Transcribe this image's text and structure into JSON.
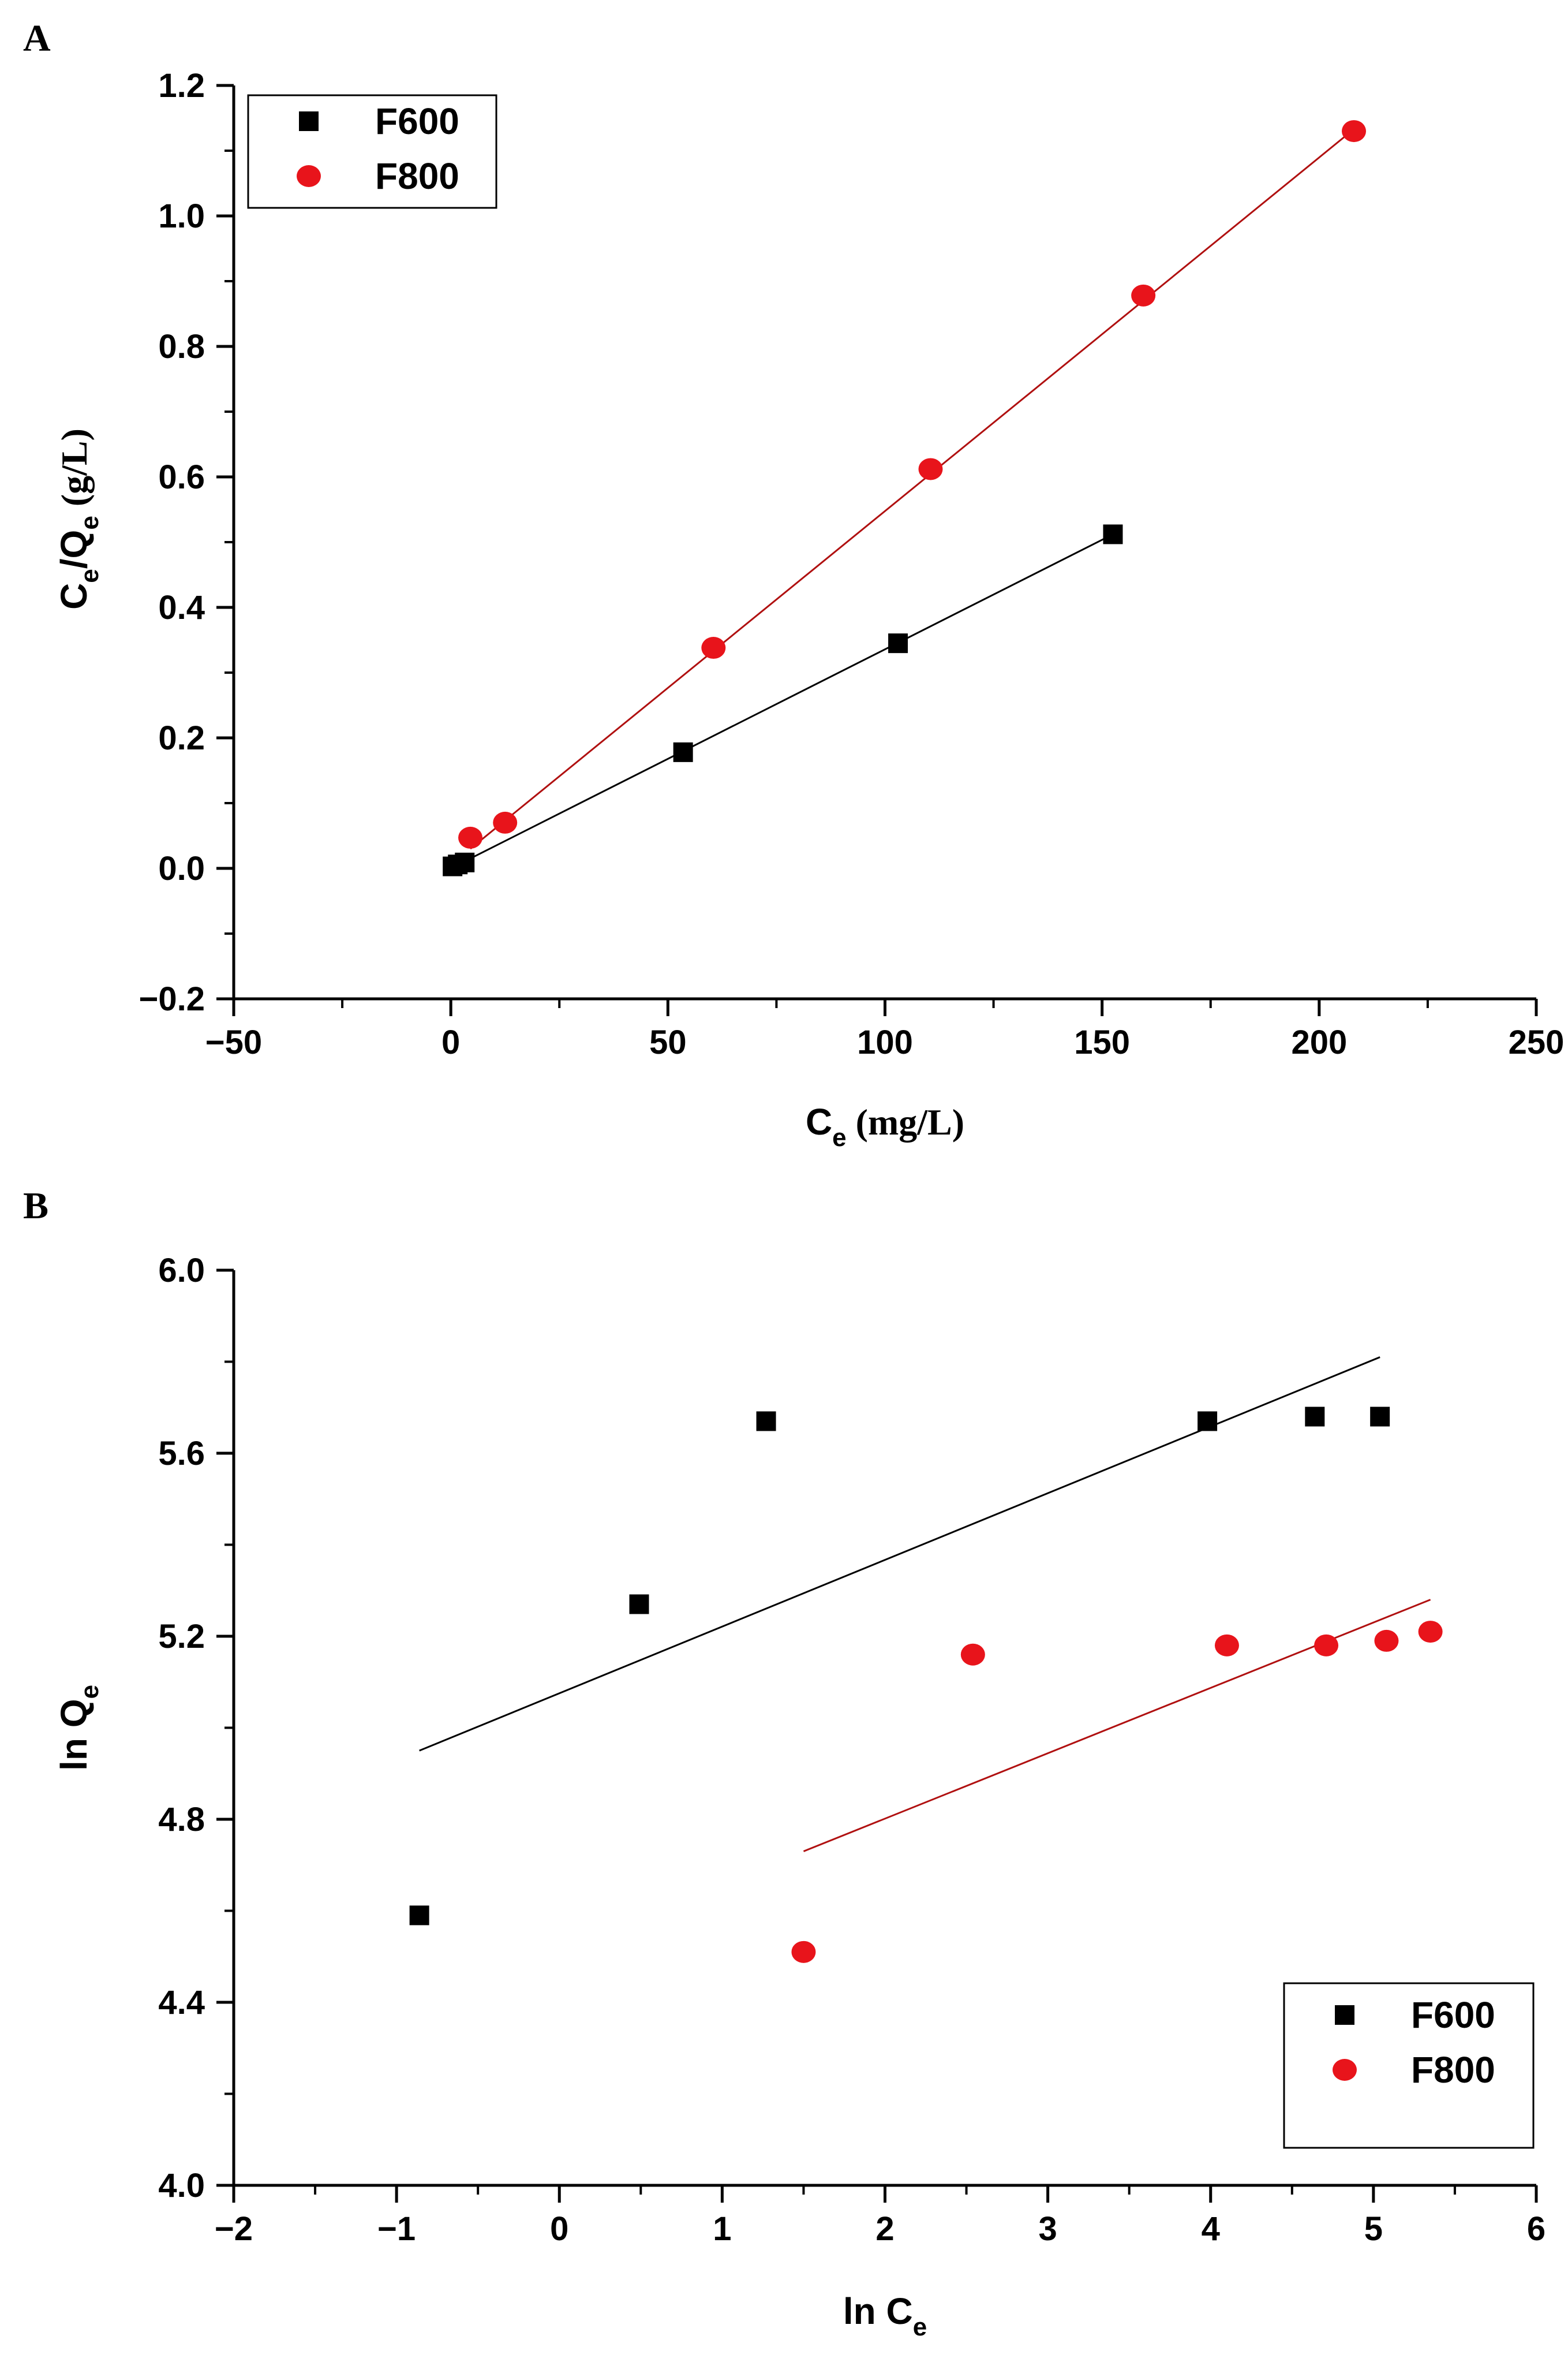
{
  "chart_data": [
    {
      "panel_label": "A",
      "type": "scatter",
      "title": "",
      "xlabel": {
        "main": "C",
        "sub": "e",
        "unit": "(mg/L)"
      },
      "ylabel": {
        "main1": "C",
        "sub1": "e",
        "main2": "/Q",
        "sub2": "e",
        "unit": "(g/L)"
      },
      "xlim": [
        -50,
        250
      ],
      "ylim": [
        -0.2,
        1.2
      ],
      "xticks": [
        -50,
        0,
        50,
        100,
        150,
        200,
        250
      ],
      "yticks": [
        -0.2,
        0.0,
        0.2,
        0.4,
        0.6,
        0.8,
        1.0,
        1.2
      ],
      "xtick_labels": [
        "−50",
        "0",
        "50",
        "100",
        "150",
        "200",
        "250"
      ],
      "ytick_labels": [
        "−0.2",
        "0.0",
        "0.2",
        "0.4",
        "0.6",
        "0.8",
        "1.0",
        "1.2"
      ],
      "legend_position": "top-left",
      "series": [
        {
          "name": "F600",
          "marker": "square",
          "color": "#000000",
          "x": [
            0.4,
            1.6,
            3.2,
            53.5,
            103.0,
            152.5
          ],
          "y": [
            0.003,
            0.006,
            0.009,
            0.178,
            0.345,
            0.512
          ],
          "fit_line": {
            "x": [
              0.0,
              152.5
            ],
            "y": [
              0.0,
              0.512
            ]
          }
        },
        {
          "name": "F800",
          "marker": "circle",
          "color": "#e8141b",
          "x": [
            4.5,
            12.5,
            60.5,
            110.5,
            159.5,
            208.0
          ],
          "y": [
            0.047,
            0.07,
            0.338,
            0.612,
            0.878,
            1.13
          ],
          "fit_line": {
            "x": [
              4.5,
              208.0
            ],
            "y": [
              0.03,
              1.133
            ]
          }
        }
      ]
    },
    {
      "panel_label": "B",
      "type": "scatter",
      "title": "",
      "xlabel": {
        "main": "ln C",
        "sub": "e"
      },
      "ylabel": {
        "main": "ln Q",
        "sub": "e"
      },
      "xlim": [
        -2,
        6
      ],
      "ylim": [
        4.0,
        6.0
      ],
      "xticks": [
        -2,
        -1,
        0,
        1,
        2,
        3,
        4,
        5,
        6
      ],
      "yticks": [
        4.0,
        4.4,
        4.8,
        5.2,
        5.6,
        6.0
      ],
      "xtick_labels": [
        "−2",
        "−1",
        "0",
        "1",
        "2",
        "3",
        "4",
        "5",
        "6"
      ],
      "ytick_labels": [
        "4.0",
        "4.4",
        "4.8",
        "5.2",
        "5.6",
        "6.0"
      ],
      "legend_position": "bottom-right",
      "series": [
        {
          "name": "F600",
          "marker": "square",
          "color": "#000000",
          "x": [
            -0.86,
            0.49,
            1.27,
            3.98,
            4.64,
            5.04
          ],
          "y": [
            4.59,
            5.27,
            5.67,
            5.67,
            5.68,
            5.68
          ],
          "fit_line": {
            "x": [
              -0.86,
              5.04
            ],
            "y": [
              4.95,
              5.81
            ]
          }
        },
        {
          "name": "F800",
          "marker": "circle",
          "color": "#e8141b",
          "x": [
            1.5,
            2.54,
            4.1,
            4.71,
            5.08,
            5.35
          ],
          "y": [
            4.51,
            5.16,
            5.18,
            5.18,
            5.19,
            5.21
          ],
          "fit_line": {
            "x": [
              1.5,
              5.35
            ],
            "y": [
              4.73,
              5.28
            ]
          }
        }
      ]
    }
  ]
}
